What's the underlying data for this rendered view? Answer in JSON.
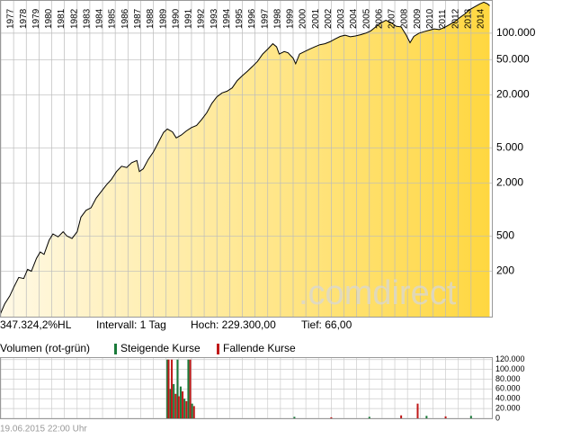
{
  "chart_data": [
    {
      "type": "line",
      "annotations": [
        "347.324,2%HL",
        "Intervall: 1 Tag",
        "Hoch: 229.300,00",
        "Tief: 66,00"
      ],
      "watermark": ".comdirect",
      "color": "#000000",
      "log_scale": true,
      "grid": true,
      "xlim": [
        1976.93,
        2015.64
      ],
      "xticks": [
        1977,
        1978,
        1979,
        1980,
        1981,
        1982,
        1983,
        1984,
        1985,
        1986,
        1987,
        1988,
        1989,
        1990,
        1991,
        1992,
        1993,
        1994,
        1995,
        1996,
        1997,
        1998,
        1999,
        2000,
        2001,
        2002,
        2003,
        2004,
        2005,
        2006,
        2007,
        2008,
        2009,
        2010,
        2011,
        2012,
        2013,
        2014
      ],
      "ylim": [
        61,
        238000
      ],
      "yticks": [
        {
          "value": 100000,
          "label": "100.000"
        },
        {
          "value": 50000,
          "label": "50.000"
        },
        {
          "value": 20000,
          "label": "20.000"
        },
        {
          "value": 5000,
          "label": "5.000"
        },
        {
          "value": 2000,
          "label": "2.000"
        },
        500,
        200
      ],
      "x": [
        1976.95,
        1977.3,
        1977.7,
        1978.0,
        1978.4,
        1978.8,
        1979.1,
        1979.4,
        1979.8,
        1980.1,
        1980.4,
        1980.8,
        1981.1,
        1981.5,
        1981.9,
        1982.2,
        1982.6,
        1983.0,
        1983.3,
        1983.7,
        1984.1,
        1984.5,
        1984.9,
        1985.3,
        1985.7,
        1986.1,
        1986.5,
        1986.9,
        1987.3,
        1987.7,
        1987.9,
        1988.2,
        1988.6,
        1989.0,
        1989.4,
        1989.8,
        1990.1,
        1990.5,
        1990.8,
        1991.2,
        1991.6,
        1992.0,
        1992.4,
        1992.8,
        1993.2,
        1993.6,
        1994.0,
        1994.4,
        1994.8,
        1995.2,
        1995.6,
        1996.0,
        1996.4,
        1996.8,
        1997.2,
        1997.6,
        1998.0,
        1998.4,
        1998.7,
        1998.9,
        1999.3,
        1999.6,
        2000.0,
        2000.2,
        2000.5,
        2000.9,
        2001.3,
        2001.7,
        2002.1,
        2002.5,
        2002.9,
        2003.3,
        2003.7,
        2004.1,
        2004.5,
        2004.9,
        2005.3,
        2005.7,
        2006.1,
        2006.5,
        2006.9,
        2007.3,
        2007.7,
        2008.1,
        2008.5,
        2008.9,
        2009.2,
        2009.5,
        2009.9,
        2010.3,
        2010.7,
        2011.1,
        2011.5,
        2011.9,
        2012.3,
        2012.7,
        2013.1,
        2013.5,
        2013.9,
        2014.3,
        2014.7,
        2015.0,
        2015.3,
        2015.46
      ],
      "values": [
        65,
        85,
        105,
        130,
        170,
        165,
        210,
        200,
        280,
        330,
        310,
        450,
        530,
        490,
        560,
        500,
        470,
        560,
        820,
        980,
        1050,
        1350,
        1600,
        1900,
        2200,
        2700,
        3100,
        3000,
        3400,
        3600,
        2700,
        2900,
        3700,
        4500,
        5800,
        7500,
        8200,
        7600,
        6500,
        7000,
        7800,
        8500,
        9000,
        10500,
        12500,
        16000,
        19000,
        21000,
        22000,
        24000,
        29000,
        33000,
        37000,
        42000,
        48000,
        58000,
        66000,
        76000,
        70000,
        58000,
        62000,
        60000,
        52000,
        45000,
        58000,
        62000,
        66000,
        70000,
        74000,
        76000,
        80000,
        86000,
        92000,
        95000,
        91000,
        93000,
        96000,
        100000,
        106000,
        118000,
        130000,
        140000,
        132000,
        120000,
        118000,
        95000,
        78000,
        92000,
        100000,
        104000,
        108000,
        112000,
        110000,
        116000,
        125000,
        135000,
        150000,
        165000,
        185000,
        200000,
        215000,
        225000,
        215000,
        205000
      ]
    },
    {
      "type": "bar",
      "title": "Volumen (rot-grün)",
      "footnote": "19.06.2015 22:00 Uhr",
      "grid": true,
      "xlim": [
        1976.93,
        2015.64
      ],
      "ylim": [
        0,
        125000
      ],
      "yticks": [
        {
          "value": 120000,
          "label": "120.000"
        },
        {
          "value": 100000,
          "label": "100.000"
        },
        {
          "value": 80000,
          "label": "80.000"
        },
        {
          "value": 60000,
          "label": "60.000"
        },
        {
          "value": 40000,
          "label": "40.000"
        },
        {
          "value": 20000,
          "label": "20.000"
        },
        0
      ],
      "x": [
        1990.1,
        1990.2,
        1990.35,
        1990.45,
        1990.6,
        1990.75,
        1990.9,
        1991.0,
        1991.15,
        1991.3,
        1991.45,
        1991.6,
        1991.75,
        1991.9,
        1992.05,
        1992.2,
        2000.1,
        2003.0,
        2006.0,
        2008.5,
        2009.8,
        2010.5,
        2012.0,
        2014.0
      ],
      "series": [
        {
          "name": "Steigende Kurse",
          "color": "#1a7a3a",
          "values": [
            120000,
            null,
            60000,
            null,
            70000,
            null,
            120000,
            null,
            65000,
            null,
            40000,
            null,
            120000,
            null,
            30000,
            null,
            3000,
            null,
            3000,
            null,
            null,
            5000,
            null,
            5000
          ]
        },
        {
          "name": "Fallende Kurse",
          "color": "#c01818",
          "values": [
            null,
            120000,
            null,
            120000,
            null,
            50000,
            null,
            45000,
            null,
            55000,
            null,
            35000,
            null,
            120000,
            null,
            25000,
            null,
            2000,
            null,
            6000,
            30000,
            null,
            4000,
            null
          ]
        }
      ]
    }
  ]
}
